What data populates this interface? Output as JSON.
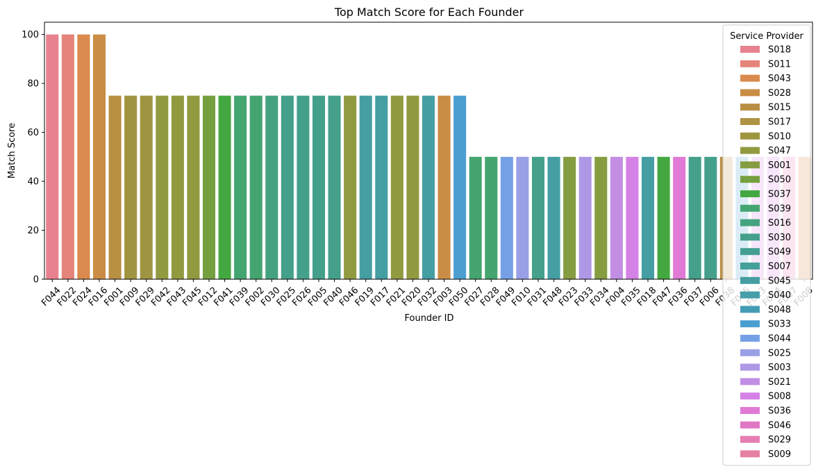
{
  "chart_data": {
    "type": "bar",
    "title": "Top Match Score for Each Founder",
    "xlabel": "Founder ID",
    "ylabel": "Match Score",
    "ylim": [
      0,
      105
    ],
    "yticks": [
      0,
      20,
      40,
      60,
      80,
      100
    ],
    "grid": false,
    "legend_title": "Service Provider",
    "legend_position": "upper right",
    "categories": [
      "F044",
      "F022",
      "F024",
      "F016",
      "F001",
      "F009",
      "F029",
      "F042",
      "F043",
      "F045",
      "F012",
      "F041",
      "F039",
      "F002",
      "F030",
      "F025",
      "F026",
      "F005",
      "F040",
      "F046",
      "F019",
      "F017",
      "F021",
      "F020",
      "F032",
      "F003",
      "F050",
      "F027",
      "F028",
      "F049",
      "F010",
      "F031",
      "F048",
      "F023",
      "F033",
      "F034",
      "F004",
      "F035",
      "F018",
      "F047",
      "F036",
      "F037",
      "F006",
      "F038",
      "F015",
      "F013",
      "F014",
      "F007",
      "F008"
    ],
    "values": [
      100,
      100,
      100,
      100,
      75,
      75,
      75,
      75,
      75,
      75,
      75,
      75,
      75,
      75,
      75,
      75,
      75,
      75,
      75,
      75,
      75,
      75,
      75,
      75,
      75,
      75,
      75,
      50,
      50,
      50,
      50,
      50,
      50,
      50,
      50,
      50,
      50,
      50,
      50,
      50,
      50,
      50,
      50,
      50,
      50,
      50,
      50,
      50,
      50
    ],
    "providers": [
      "S018",
      "S011",
      "S043",
      "S028",
      "S015",
      "S017",
      "S010",
      "S047",
      "S001",
      "S050",
      "S037",
      "S039",
      "S016",
      "S030",
      "S049",
      "S007",
      "S045",
      "S040",
      "S048",
      "S033",
      "S044",
      "S025",
      "S003",
      "S021",
      "S008",
      "S036",
      "S046",
      "S029",
      "S009"
    ],
    "provider_colors": {
      "S018": "#e8828e",
      "S011": "#e5847a",
      "S043": "#d98a4c",
      "S028": "#c98d45",
      "S015": "#b98f42",
      "S017": "#ad9342",
      "S010": "#9f9540",
      "S047": "#929a40",
      "S001": "#859c40",
      "S050": "#76a040",
      "S037": "#44a840",
      "S039": "#44a570",
      "S016": "#44a37f",
      "S030": "#44a08a",
      "S049": "#449f92",
      "S007": "#44a09a",
      "S045": "#449ea2",
      "S040": "#469ea8",
      "S048": "#459db5",
      "S033": "#4a9ed0",
      "S044": "#76a0e6",
      "S025": "#9aa0e6",
      "S003": "#ae98e6",
      "S021": "#c28ee4",
      "S008": "#d482e6",
      "S036": "#e07ad6",
      "S046": "#e078c4",
      "S029": "#e47eb2",
      "S009": "#e680a2"
    },
    "bar_providers": [
      "S018",
      "S011",
      "S043",
      "S028",
      "S015",
      "S010",
      "S010",
      "S047",
      "S047",
      "S047",
      "S050",
      "S037",
      "S039",
      "S039",
      "S016",
      "S030",
      "S030",
      "S030",
      "S030",
      "S047",
      "S045",
      "S045",
      "S047",
      "S047",
      "S045",
      "S028",
      "S033",
      "S039",
      "S039",
      "S044",
      "S025",
      "S030",
      "S045",
      "S001",
      "S003",
      "S001",
      "S021",
      "S008",
      "S045",
      "S037",
      "S036",
      "S030",
      "S030",
      "S015",
      "S033",
      "S008",
      "S008",
      "S029",
      "S043"
    ]
  }
}
